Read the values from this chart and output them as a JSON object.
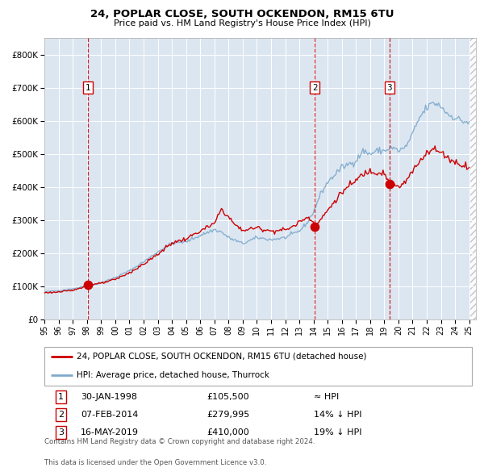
{
  "title": "24, POPLAR CLOSE, SOUTH OCKENDON, RM15 6TU",
  "subtitle": "Price paid vs. HM Land Registry's House Price Index (HPI)",
  "legend_line1": "24, POPLAR CLOSE, SOUTH OCKENDON, RM15 6TU (detached house)",
  "legend_line2": "HPI: Average price, detached house, Thurrock",
  "transactions": [
    {
      "num": 1,
      "date": "30-JAN-1998",
      "price": 105500,
      "rel": "≈ HPI",
      "year": 1998.08
    },
    {
      "num": 2,
      "date": "07-FEB-2014",
      "price": 279995,
      "rel": "14% ↓ HPI",
      "year": 2014.1
    },
    {
      "num": 3,
      "date": "16-MAY-2019",
      "price": 410000,
      "rel": "19% ↓ HPI",
      "year": 2019.37
    }
  ],
  "footer": [
    "Contains HM Land Registry data © Crown copyright and database right 2024.",
    "This data is licensed under the Open Government Licence v3.0."
  ],
  "hpi_color": "#7eaacc",
  "price_color": "#cc0000",
  "vline_color": "#cc0000",
  "bg_color": "#dce6f1",
  "grid_color": "#ffffff",
  "ylim": [
    0,
    850000
  ],
  "yticks": [
    0,
    100000,
    200000,
    300000,
    400000,
    500000,
    600000,
    700000,
    800000
  ],
  "xlim_start": 1995.0,
  "xlim_end": 2025.5,
  "hpi_keypoints": [
    [
      1995.0,
      85000
    ],
    [
      1996.0,
      88000
    ],
    [
      1997.0,
      94000
    ],
    [
      1998.0,
      102000
    ],
    [
      1999.0,
      112000
    ],
    [
      2000.0,
      128000
    ],
    [
      2001.0,
      148000
    ],
    [
      2002.0,
      175000
    ],
    [
      2003.0,
      205000
    ],
    [
      2004.0,
      232000
    ],
    [
      2005.0,
      235000
    ],
    [
      2006.0,
      255000
    ],
    [
      2007.0,
      272000
    ],
    [
      2007.5,
      265000
    ],
    [
      2008.0,
      248000
    ],
    [
      2009.0,
      230000
    ],
    [
      2010.0,
      248000
    ],
    [
      2011.0,
      242000
    ],
    [
      2012.0,
      248000
    ],
    [
      2013.0,
      268000
    ],
    [
      2013.5,
      290000
    ],
    [
      2014.0,
      325000
    ],
    [
      2014.5,
      380000
    ],
    [
      2015.0,
      415000
    ],
    [
      2016.0,
      460000
    ],
    [
      2017.0,
      480000
    ],
    [
      2017.5,
      510000
    ],
    [
      2018.0,
      500000
    ],
    [
      2018.5,
      510000
    ],
    [
      2019.0,
      510000
    ],
    [
      2019.5,
      520000
    ],
    [
      2020.0,
      510000
    ],
    [
      2020.5,
      520000
    ],
    [
      2021.0,
      560000
    ],
    [
      2021.5,
      610000
    ],
    [
      2022.0,
      640000
    ],
    [
      2022.5,
      655000
    ],
    [
      2023.0,
      645000
    ],
    [
      2023.5,
      620000
    ],
    [
      2024.0,
      610000
    ],
    [
      2024.5,
      600000
    ],
    [
      2025.0,
      595000
    ]
  ],
  "prop_keypoints": [
    [
      1995.0,
      82000
    ],
    [
      1996.0,
      84000
    ],
    [
      1997.0,
      89000
    ],
    [
      1998.08,
      105500
    ],
    [
      1999.0,
      110000
    ],
    [
      2000.0,
      122000
    ],
    [
      2001.0,
      142000
    ],
    [
      2002.0,
      168000
    ],
    [
      2003.0,
      198000
    ],
    [
      2004.0,
      232000
    ],
    [
      2005.0,
      244000
    ],
    [
      2006.0,
      268000
    ],
    [
      2007.0,
      290000
    ],
    [
      2007.5,
      335000
    ],
    [
      2008.0,
      310000
    ],
    [
      2008.5,
      285000
    ],
    [
      2009.0,
      270000
    ],
    [
      2010.0,
      278000
    ],
    [
      2011.0,
      268000
    ],
    [
      2012.0,
      272000
    ],
    [
      2012.5,
      280000
    ],
    [
      2013.0,
      295000
    ],
    [
      2013.5,
      310000
    ],
    [
      2014.0,
      300000
    ],
    [
      2014.1,
      279995
    ],
    [
      2015.0,
      330000
    ],
    [
      2016.0,
      385000
    ],
    [
      2017.0,
      420000
    ],
    [
      2017.5,
      440000
    ],
    [
      2018.0,
      450000
    ],
    [
      2018.5,
      445000
    ],
    [
      2019.0,
      445000
    ],
    [
      2019.37,
      410000
    ],
    [
      2020.0,
      400000
    ],
    [
      2020.5,
      415000
    ],
    [
      2021.0,
      448000
    ],
    [
      2021.5,
      478000
    ],
    [
      2022.0,
      508000
    ],
    [
      2022.5,
      515000
    ],
    [
      2023.0,
      505000
    ],
    [
      2023.5,
      490000
    ],
    [
      2024.0,
      475000
    ],
    [
      2024.5,
      468000
    ],
    [
      2025.0,
      462000
    ]
  ]
}
